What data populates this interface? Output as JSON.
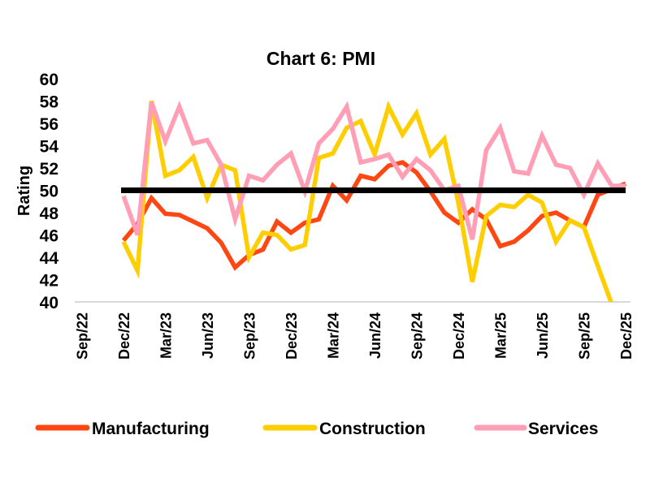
{
  "chart_data": {
    "type": "line",
    "title": "Chart 6: PMI",
    "ylabel": "Rating",
    "xlabel": "",
    "ylim": [
      40,
      60
    ],
    "yticks": [
      "40",
      "42",
      "44",
      "46",
      "48",
      "50",
      "52",
      "54",
      "56",
      "58",
      "60"
    ],
    "xlim": [
      "Sep/22",
      "Dec/25"
    ],
    "xticks": [
      "Sep/22",
      "Dec/22",
      "Mar/23",
      "Jun/23",
      "Sep/23",
      "Dec/23",
      "Mar/24",
      "Jun/24",
      "Sep/24",
      "Dec/24",
      "Mar/25",
      "Jun/25",
      "Sep/25",
      "Dec/25"
    ],
    "grid": false,
    "legend": "bottom",
    "reference_line": {
      "value": 50,
      "color": "#000000"
    },
    "x": [
      "Dec/22",
      "Jan/23",
      "Feb/23",
      "Mar/23",
      "Apr/23",
      "May/23",
      "Jun/23",
      "Jul/23",
      "Aug/23",
      "Sep/23",
      "Oct/23",
      "Nov/23",
      "Dec/23",
      "Jan/24",
      "Feb/24",
      "Mar/24",
      "Apr/24",
      "May/24",
      "Jun/24",
      "Jul/24",
      "Aug/24",
      "Sep/24",
      "Oct/24",
      "Nov/24",
      "Dec/24",
      "Jan/25",
      "Feb/25",
      "Mar/25",
      "Apr/25",
      "May/25",
      "Jun/25",
      "Jul/25",
      "Aug/25",
      "Sep/25",
      "Oct/25",
      "Nov/25",
      "Dec/25"
    ],
    "series": [
      {
        "name": "Manufacturing",
        "color": "#FF4713",
        "values": [
          45.5,
          47.0,
          49.3,
          47.9,
          47.8,
          47.2,
          46.6,
          45.3,
          43.1,
          44.2,
          44.7,
          47.2,
          46.2,
          47.1,
          47.4,
          50.4,
          49.1,
          51.3,
          51.0,
          52.2,
          52.5,
          51.6,
          49.9,
          48.0,
          47.1,
          48.3,
          47.4,
          45.0,
          45.4,
          46.4,
          47.7,
          48.0,
          47.3,
          46.7,
          49.6,
          50.1,
          50.6
        ]
      },
      {
        "name": "Construction",
        "color": "#FFCE00",
        "values": [
          45.4,
          42.8,
          58.0,
          51.3,
          51.8,
          53.0,
          49.3,
          52.3,
          51.8,
          44.0,
          46.2,
          46.0,
          44.7,
          45.1,
          52.9,
          53.3,
          55.6,
          56.2,
          53.2,
          57.5,
          55.0,
          56.9,
          53.2,
          54.6,
          48.9,
          41.8,
          47.7,
          48.7,
          48.5,
          49.6,
          48.9,
          45.4,
          47.3,
          46.7,
          43.2,
          39.8,
          null
        ]
      },
      {
        "name": "Services",
        "color": "#FF9EB5",
        "values": [
          49.5,
          46.0,
          57.9,
          54.4,
          57.5,
          54.2,
          54.5,
          52.3,
          47.4,
          51.3,
          50.9,
          52.3,
          53.3,
          49.9,
          54.2,
          55.5,
          57.5,
          52.5,
          52.8,
          53.2,
          51.2,
          52.8,
          51.8,
          50.0,
          50.4,
          45.6,
          53.6,
          55.6,
          51.7,
          51.5,
          54.9,
          52.3,
          52.0,
          49.6,
          52.4,
          50.4,
          50.4
        ]
      }
    ]
  }
}
